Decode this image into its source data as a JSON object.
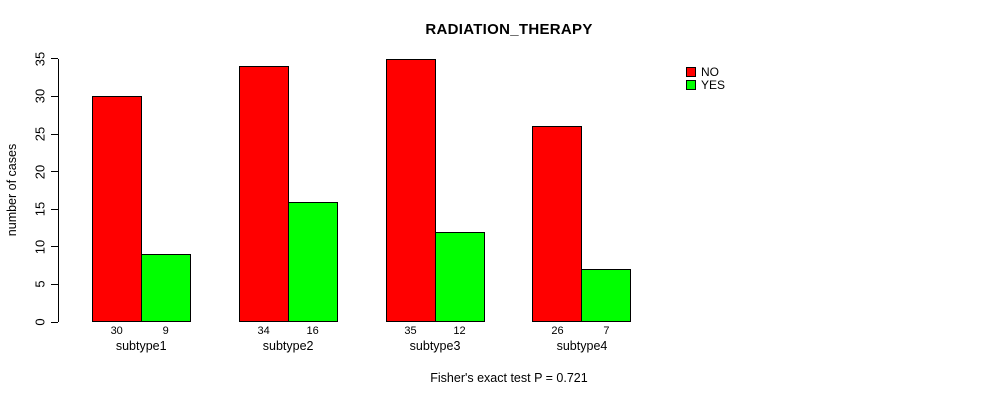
{
  "chart_data": {
    "type": "bar",
    "title": "RADIATION_THERAPY",
    "xlabel": "",
    "ylabel": "number of cases",
    "categories": [
      "subtype1",
      "subtype2",
      "subtype3",
      "subtype4"
    ],
    "series": [
      {
        "name": "NO",
        "color": "#ff0000",
        "values": [
          30,
          34,
          35,
          26
        ]
      },
      {
        "name": "YES",
        "color": "#00ff00",
        "values": [
          9,
          16,
          12,
          7
        ]
      }
    ],
    "bar_value_labels_shown": true,
    "ylim": [
      0,
      35
    ],
    "yticks": [
      0,
      5,
      10,
      15,
      20,
      25,
      30,
      35
    ],
    "grid": false,
    "legend_position": "top-right",
    "footnote": "Fisher's exact test P = 0.721",
    "background_color": "#ffffff",
    "bar_border_color": "#000000"
  }
}
